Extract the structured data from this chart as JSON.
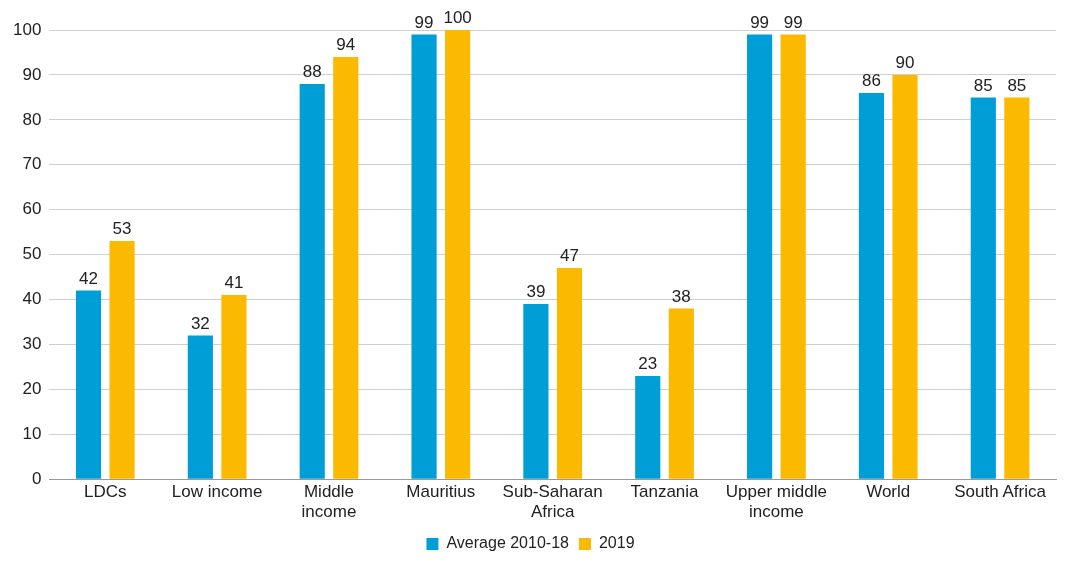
{
  "chart_data": {
    "type": "bar",
    "categories": [
      "LDCs",
      "Low income",
      "Middle income",
      "Mauritius",
      "Sub-Saharan Africa",
      "Tanzania",
      "Upper middle income",
      "World",
      "South Africa"
    ],
    "series": [
      {
        "name": "Average 2010-18",
        "color": "#009ed6",
        "values": [
          42,
          32,
          88,
          99,
          39,
          23,
          99,
          86,
          85
        ]
      },
      {
        "name": "2019",
        "color": "#fbb900",
        "values": [
          53,
          41,
          94,
          100,
          47,
          38,
          99,
          90,
          85
        ]
      }
    ],
    "ylim": [
      0,
      100
    ],
    "yticks": [
      0,
      10,
      20,
      30,
      40,
      50,
      60,
      70,
      80,
      90,
      100
    ],
    "grid": "y",
    "legend": "bottom",
    "data_labels": true
  }
}
